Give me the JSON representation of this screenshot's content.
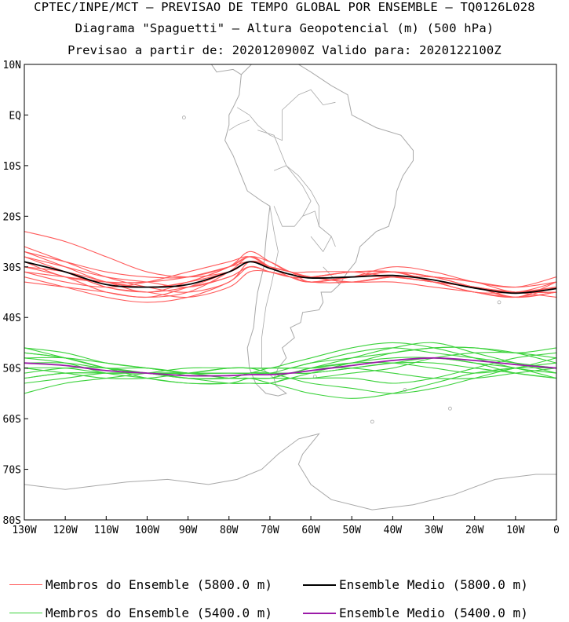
{
  "header": {
    "line1": "CPTEC/INPE/MCT — PREVISAO DE TEMPO GLOBAL POR ENSEMBLE — TQ0126L028",
    "line2": "Diagrama \"Spaguetti\" — Altura Geopotencial (m) (500 hPa)",
    "line3": "Previsao a partir de: 2020120900Z  Valido para: 2020122100Z"
  },
  "axes": {
    "lat_labels": [
      "10N",
      "EQ",
      "10S",
      "20S",
      "30S",
      "40S",
      "50S",
      "60S",
      "70S",
      "80S"
    ],
    "lat_values": [
      10,
      0,
      -10,
      -20,
      -30,
      -40,
      -50,
      -60,
      -70,
      -80
    ],
    "lon_labels": [
      "130W",
      "120W",
      "110W",
      "100W",
      "90W",
      "80W",
      "70W",
      "60W",
      "50W",
      "40W",
      "30W",
      "20W",
      "10W",
      "0"
    ],
    "lon_values": [
      -130,
      -120,
      -110,
      -100,
      -90,
      -80,
      -70,
      -60,
      -50,
      -40,
      -30,
      -20,
      -10,
      0
    ]
  },
  "colors": {
    "member_5800": "#ff5a5a",
    "mean_5800": "#000000",
    "member_5400": "#3cd23c",
    "mean_5400": "#9b1aa8",
    "coast": "#a8a8a8"
  },
  "legend": [
    {
      "label": "Membros do Ensemble (5800.0 m)",
      "color": "#ff5a5a"
    },
    {
      "label": "Ensemble Medio (5800.0 m)",
      "color": "#000000"
    },
    {
      "label": "Membros do Ensemble (5400.0 m)",
      "color": "#3cd23c"
    },
    {
      "label": "Ensemble Medio (5400.0 m)",
      "color": "#9b1aa8"
    }
  ],
  "chart_data": {
    "type": "line",
    "x_axis": "longitude (deg)",
    "y_axis": "latitude (deg)",
    "xlim": [
      -130,
      0
    ],
    "ylim": [
      -80,
      10
    ],
    "x": [
      -130,
      -120,
      -110,
      -100,
      -90,
      -80,
      -75,
      -70,
      -65,
      -60,
      -50,
      -40,
      -30,
      -20,
      -10,
      0
    ],
    "series_5800_members": [
      [
        -27,
        -30,
        -33,
        -34,
        -33,
        -31,
        -29,
        -30,
        -31,
        -32,
        -32,
        -31,
        -32,
        -34,
        -35,
        -33
      ],
      [
        -28,
        -31,
        -34,
        -35,
        -34,
        -32,
        -30,
        -31,
        -32,
        -32,
        -31,
        -31,
        -33,
        -35,
        -36,
        -34
      ],
      [
        -29,
        -32,
        -33,
        -33,
        -32,
        -30,
        -29,
        -30,
        -31,
        -33,
        -32,
        -32,
        -33,
        -34,
        -35,
        -34
      ],
      [
        -30,
        -32,
        -35,
        -36,
        -35,
        -31,
        -28,
        -30,
        -32,
        -33,
        -32,
        -32,
        -33,
        -34,
        -36,
        -35
      ],
      [
        -31,
        -33,
        -34,
        -33,
        -31,
        -29,
        -28,
        -30,
        -31,
        -32,
        -33,
        -32,
        -32,
        -33,
        -34,
        -33
      ],
      [
        -32,
        -34,
        -36,
        -37,
        -36,
        -33,
        -30,
        -31,
        -32,
        -33,
        -32,
        -31,
        -33,
        -35,
        -36,
        -35
      ],
      [
        -27,
        -29,
        -31,
        -32,
        -32,
        -30,
        -28,
        -29,
        -31,
        -32,
        -31,
        -31,
        -32,
        -34,
        -35,
        -36
      ],
      [
        -33,
        -34,
        -35,
        -36,
        -34,
        -31,
        -29,
        -30,
        -31,
        -32,
        -33,
        -33,
        -34,
        -35,
        -36,
        -35
      ],
      [
        -28,
        -30,
        -32,
        -33,
        -34,
        -32,
        -30,
        -31,
        -32,
        -33,
        -32,
        -30,
        -31,
        -33,
        -34,
        -32
      ],
      [
        -26,
        -29,
        -32,
        -34,
        -35,
        -33,
        -29,
        -30,
        -32,
        -32,
        -31,
        -31,
        -32,
        -34,
        -35,
        -35
      ],
      [
        -30,
        -31,
        -33,
        -35,
        -33,
        -30,
        -27,
        -29,
        -31,
        -31,
        -31,
        -32,
        -33,
        -35,
        -35,
        -34
      ],
      [
        -29,
        -31,
        -34,
        -35,
        -36,
        -34,
        -31,
        -31,
        -32,
        -33,
        -33,
        -32,
        -32,
        -33,
        -35,
        -34
      ],
      [
        -31,
        -32,
        -33,
        -34,
        -33,
        -30,
        -28,
        -30,
        -32,
        -33,
        -33,
        -32,
        -33,
        -34,
        -36,
        -33
      ],
      [
        -23,
        -25,
        -28,
        -31,
        -32,
        -31,
        -29,
        -30,
        -31,
        -32,
        -31,
        -31,
        -32,
        -34,
        -35,
        -35
      ]
    ],
    "series_5800_mean": [
      -29,
      -31,
      -33.5,
      -34,
      -33.5,
      -31,
      -29,
      -30.3,
      -31.5,
      -32.2,
      -32,
      -31.7,
      -32.6,
      -34.2,
      -35.2,
      -34.3
    ],
    "series_5400_members": [
      [
        -46,
        -47,
        -49,
        -50,
        -51,
        -51,
        -51,
        -51,
        -50,
        -49,
        -47,
        -46,
        -47,
        -48,
        -49,
        -50
      ],
      [
        -48,
        -49,
        -51,
        -52,
        -53,
        -53,
        -52,
        -52,
        -51,
        -50,
        -48,
        -46,
        -45,
        -47,
        -49,
        -51
      ],
      [
        -50,
        -50,
        -51,
        -51,
        -52,
        -52,
        -51,
        -51,
        -51,
        -50,
        -49,
        -49,
        -50,
        -51,
        -50,
        -48
      ],
      [
        -52,
        -51,
        -51,
        -51,
        -51,
        -50,
        -50,
        -50,
        -50,
        -50,
        -50,
        -51,
        -52,
        -52,
        -51,
        -50
      ],
      [
        -55,
        -53,
        -52,
        -51,
        -50,
        -50,
        -50,
        -51,
        -52,
        -53,
        -54,
        -55,
        -54,
        -52,
        -50,
        -49
      ],
      [
        -47,
        -48,
        -50,
        -52,
        -53,
        -53,
        -53,
        -53,
        -52,
        -52,
        -51,
        -50,
        -48,
        -47,
        -47,
        -48
      ],
      [
        -49,
        -49,
        -50,
        -50,
        -51,
        -52,
        -52,
        -52,
        -51,
        -51,
        -50,
        -49,
        -48,
        -49,
        -50,
        -52
      ],
      [
        -51,
        -50,
        -50,
        -51,
        -52,
        -52,
        -52,
        -52,
        -52,
        -52,
        -52,
        -53,
        -52,
        -50,
        -48,
        -47
      ],
      [
        -46,
        -48,
        -50,
        -51,
        -52,
        -52,
        -51,
        -51,
        -51,
        -50,
        -49,
        -47,
        -46,
        -46,
        -47,
        -49
      ],
      [
        -50,
        -51,
        -52,
        -52,
        -51,
        -50,
        -50,
        -50,
        -49,
        -48,
        -46,
        -45,
        -46,
        -48,
        -50,
        -51
      ],
      [
        -53,
        -52,
        -51,
        -51,
        -51,
        -52,
        -52,
        -53,
        -54,
        -55,
        -56,
        -55,
        -53,
        -51,
        -50,
        -50
      ],
      [
        -48,
        -48,
        -49,
        -50,
        -51,
        -51,
        -51,
        -51,
        -51,
        -51,
        -50,
        -49,
        -49,
        -50,
        -51,
        -52
      ],
      [
        -47,
        -48,
        -50,
        -51,
        -52,
        -53,
        -53,
        -53,
        -52,
        -51,
        -49,
        -48,
        -48,
        -49,
        -51,
        -52
      ],
      [
        -52,
        -51,
        -51,
        -51,
        -51,
        -51,
        -51,
        -50,
        -50,
        -49,
        -48,
        -47,
        -46,
        -46,
        -47,
        -46
      ]
    ],
    "series_5400_mean": [
      -49,
      -49.5,
      -50.5,
      -51,
      -51.5,
      -51.5,
      -51.3,
      -51.3,
      -51,
      -50.5,
      -49.5,
      -48.5,
      -48,
      -48.5,
      -49.3,
      -50
    ]
  }
}
